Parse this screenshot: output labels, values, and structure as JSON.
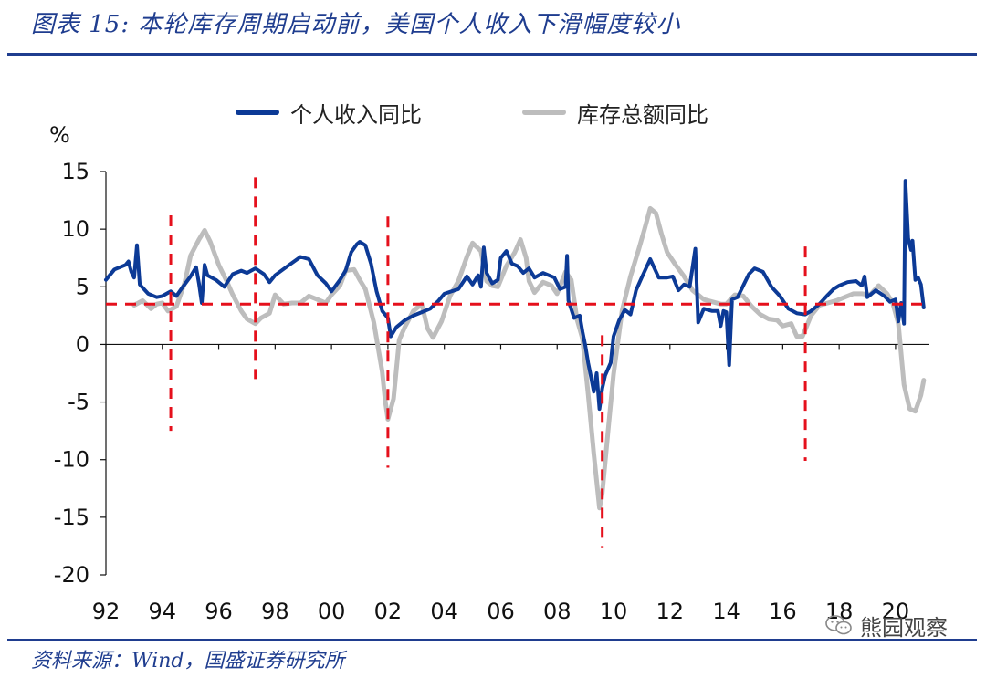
{
  "title": "图表 15:  本轮库存周期启动前，美国个人收入下滑幅度较小",
  "source": "资料来源：Wind，国盛证券研究所",
  "watermark": "熊园观察",
  "colors": {
    "accent": "#1f3d8f",
    "income": "#0c3a96",
    "inventory": "#bdbdbd",
    "marker": "#e5101c"
  },
  "chart_data": {
    "type": "line",
    "ylabel": "%",
    "ylim": [
      -20,
      15
    ],
    "yticks": [
      15,
      10,
      5,
      0,
      -5,
      -10,
      -15,
      -20
    ],
    "xlim": [
      1992,
      2021.2
    ],
    "xticks": [
      1992,
      1994,
      1996,
      1998,
      2000,
      2002,
      2004,
      2006,
      2008,
      2010,
      2012,
      2014,
      2016,
      2018,
      2020
    ],
    "xtick_labels": [
      "92",
      "94",
      "96",
      "98",
      "00",
      "02",
      "04",
      "06",
      "08",
      "10",
      "12",
      "14",
      "16",
      "18",
      "20"
    ],
    "legend": [
      "个人收入同比",
      "库存总额同比"
    ],
    "series": [
      {
        "name": "个人收入同比",
        "color": "#0c3a96",
        "points": [
          [
            1992.0,
            5.6
          ],
          [
            1992.3,
            6.5
          ],
          [
            1992.7,
            6.9
          ],
          [
            1992.8,
            7.2
          ],
          [
            1992.9,
            6.3
          ],
          [
            1993.0,
            5.8
          ],
          [
            1993.1,
            8.6
          ],
          [
            1993.2,
            5.2
          ],
          [
            1993.5,
            4.4
          ],
          [
            1993.8,
            4.1
          ],
          [
            1994.0,
            4.2
          ],
          [
            1994.3,
            4.6
          ],
          [
            1994.5,
            4.2
          ],
          [
            1994.7,
            4.9
          ],
          [
            1995.0,
            5.9
          ],
          [
            1995.2,
            6.7
          ],
          [
            1995.3,
            5.3
          ],
          [
            1995.4,
            3.6
          ],
          [
            1995.5,
            6.9
          ],
          [
            1995.6,
            6.0
          ],
          [
            1995.9,
            5.6
          ],
          [
            1996.2,
            5.0
          ],
          [
            1996.5,
            6.1
          ],
          [
            1996.8,
            6.4
          ],
          [
            1997.0,
            6.2
          ],
          [
            1997.3,
            6.6
          ],
          [
            1997.6,
            6.1
          ],
          [
            1997.8,
            5.4
          ],
          [
            1998.0,
            6.0
          ],
          [
            1998.5,
            6.9
          ],
          [
            1998.9,
            7.6
          ],
          [
            1999.2,
            7.4
          ],
          [
            1999.5,
            6.0
          ],
          [
            1999.8,
            5.3
          ],
          [
            2000.0,
            4.6
          ],
          [
            2000.3,
            5.6
          ],
          [
            2000.5,
            6.4
          ],
          [
            2000.7,
            8.0
          ],
          [
            2000.9,
            8.7
          ],
          [
            2001.0,
            8.9
          ],
          [
            2001.2,
            8.6
          ],
          [
            2001.4,
            7.0
          ],
          [
            2001.6,
            4.6
          ],
          [
            2001.8,
            2.9
          ],
          [
            2002.0,
            2.3
          ],
          [
            2002.1,
            0.7
          ],
          [
            2002.3,
            1.5
          ],
          [
            2002.6,
            2.1
          ],
          [
            2002.9,
            2.5
          ],
          [
            2003.2,
            2.8
          ],
          [
            2003.5,
            3.1
          ],
          [
            2003.8,
            3.8
          ],
          [
            2004.0,
            4.4
          ],
          [
            2004.5,
            4.8
          ],
          [
            2004.8,
            5.9
          ],
          [
            2005.0,
            5.2
          ],
          [
            2005.2,
            6.0
          ],
          [
            2005.3,
            5.0
          ],
          [
            2005.4,
            8.4
          ],
          [
            2005.5,
            6.2
          ],
          [
            2005.7,
            5.3
          ],
          [
            2005.9,
            5.6
          ],
          [
            2006.0,
            7.5
          ],
          [
            2006.2,
            8.1
          ],
          [
            2006.4,
            7.0
          ],
          [
            2006.6,
            6.8
          ],
          [
            2006.8,
            6.2
          ],
          [
            2007.0,
            6.6
          ],
          [
            2007.2,
            5.8
          ],
          [
            2007.5,
            6.2
          ],
          [
            2007.9,
            5.8
          ],
          [
            2008.1,
            4.8
          ],
          [
            2008.3,
            5.0
          ],
          [
            2008.35,
            7.7
          ],
          [
            2008.4,
            3.8
          ],
          [
            2008.6,
            2.3
          ],
          [
            2008.8,
            2.5
          ],
          [
            2008.9,
            1.1
          ],
          [
            2009.0,
            -0.1
          ],
          [
            2009.1,
            -1.6
          ],
          [
            2009.2,
            -2.8
          ],
          [
            2009.3,
            -4.1
          ],
          [
            2009.4,
            -2.5
          ],
          [
            2009.5,
            -5.6
          ],
          [
            2009.6,
            -3.8
          ],
          [
            2009.7,
            -2.7
          ],
          [
            2009.9,
            -1.6
          ],
          [
            2010.0,
            0.7
          ],
          [
            2010.2,
            2.1
          ],
          [
            2010.4,
            3.0
          ],
          [
            2010.6,
            2.6
          ],
          [
            2010.8,
            4.7
          ],
          [
            2011.0,
            5.8
          ],
          [
            2011.3,
            7.4
          ],
          [
            2011.6,
            5.8
          ],
          [
            2011.9,
            5.8
          ],
          [
            2012.1,
            5.9
          ],
          [
            2012.3,
            4.7
          ],
          [
            2012.5,
            5.2
          ],
          [
            2012.7,
            5.0
          ],
          [
            2012.9,
            8.3
          ],
          [
            2013.0,
            1.9
          ],
          [
            2013.2,
            3.1
          ],
          [
            2013.5,
            2.9
          ],
          [
            2013.7,
            2.9
          ],
          [
            2013.8,
            1.6
          ],
          [
            2013.9,
            2.9
          ],
          [
            2014.0,
            2.8
          ],
          [
            2014.1,
            -1.8
          ],
          [
            2014.2,
            3.9
          ],
          [
            2014.4,
            4.1
          ],
          [
            2014.6,
            5.1
          ],
          [
            2014.8,
            6.1
          ],
          [
            2015.0,
            6.6
          ],
          [
            2015.3,
            6.3
          ],
          [
            2015.6,
            5.0
          ],
          [
            2015.9,
            4.2
          ],
          [
            2016.2,
            3.1
          ],
          [
            2016.5,
            2.7
          ],
          [
            2016.8,
            2.6
          ],
          [
            2017.0,
            2.9
          ],
          [
            2017.3,
            3.5
          ],
          [
            2017.6,
            4.3
          ],
          [
            2017.8,
            4.8
          ],
          [
            2018.0,
            5.1
          ],
          [
            2018.3,
            5.4
          ],
          [
            2018.6,
            5.5
          ],
          [
            2018.8,
            5.1
          ],
          [
            2018.9,
            5.9
          ],
          [
            2019.0,
            4.1
          ],
          [
            2019.3,
            4.7
          ],
          [
            2019.6,
            4.2
          ],
          [
            2019.8,
            3.7
          ],
          [
            2020.0,
            3.9
          ],
          [
            2020.1,
            2.0
          ],
          [
            2020.2,
            3.6
          ],
          [
            2020.3,
            1.8
          ],
          [
            2020.35,
            14.2
          ],
          [
            2020.45,
            9.2
          ],
          [
            2020.55,
            8.2
          ],
          [
            2020.6,
            9.0
          ],
          [
            2020.7,
            5.6
          ],
          [
            2020.8,
            5.8
          ],
          [
            2020.9,
            5.2
          ],
          [
            2021.0,
            3.2
          ]
        ]
      },
      {
        "name": "库存总额同比",
        "color": "#bdbdbd",
        "points": [
          [
            1993.0,
            3.4
          ],
          [
            1993.3,
            3.8
          ],
          [
            1993.6,
            3.1
          ],
          [
            1993.8,
            3.5
          ],
          [
            1994.0,
            3.6
          ],
          [
            1994.2,
            2.9
          ],
          [
            1994.5,
            3.3
          ],
          [
            1994.8,
            5.4
          ],
          [
            1995.0,
            7.7
          ],
          [
            1995.3,
            9.1
          ],
          [
            1995.5,
            9.9
          ],
          [
            1995.7,
            8.9
          ],
          [
            1996.0,
            6.9
          ],
          [
            1996.3,
            5.4
          ],
          [
            1996.5,
            4.3
          ],
          [
            1996.8,
            2.9
          ],
          [
            1997.0,
            2.2
          ],
          [
            1997.3,
            1.8
          ],
          [
            1997.5,
            2.3
          ],
          [
            1997.8,
            2.7
          ],
          [
            1998.0,
            4.3
          ],
          [
            1998.3,
            3.5
          ],
          [
            1998.6,
            3.6
          ],
          [
            1998.9,
            3.6
          ],
          [
            1999.2,
            4.2
          ],
          [
            1999.5,
            3.9
          ],
          [
            1999.8,
            3.6
          ],
          [
            2000.0,
            4.3
          ],
          [
            2000.3,
            5.1
          ],
          [
            2000.5,
            6.4
          ],
          [
            2000.8,
            6.5
          ],
          [
            2001.0,
            5.6
          ],
          [
            2001.2,
            4.8
          ],
          [
            2001.5,
            1.9
          ],
          [
            2001.8,
            -2.4
          ],
          [
            2001.9,
            -4.8
          ],
          [
            2002.0,
            -6.5
          ],
          [
            2002.2,
            -4.7
          ],
          [
            2002.4,
            0.4
          ],
          [
            2002.6,
            1.5
          ],
          [
            2002.9,
            2.9
          ],
          [
            2003.2,
            3.5
          ],
          [
            2003.4,
            1.4
          ],
          [
            2003.6,
            0.6
          ],
          [
            2003.9,
            2.0
          ],
          [
            2004.2,
            4.2
          ],
          [
            2004.5,
            5.5
          ],
          [
            2004.8,
            7.6
          ],
          [
            2005.0,
            8.8
          ],
          [
            2005.3,
            8.1
          ],
          [
            2005.5,
            5.5
          ],
          [
            2005.7,
            5.1
          ],
          [
            2005.9,
            5.0
          ],
          [
            2006.2,
            6.8
          ],
          [
            2006.5,
            8.0
          ],
          [
            2006.7,
            9.1
          ],
          [
            2006.9,
            7.5
          ],
          [
            2007.0,
            5.5
          ],
          [
            2007.2,
            4.5
          ],
          [
            2007.5,
            5.4
          ],
          [
            2007.8,
            5.1
          ],
          [
            2008.0,
            4.4
          ],
          [
            2008.3,
            6.3
          ],
          [
            2008.5,
            5.6
          ],
          [
            2008.7,
            2.2
          ],
          [
            2008.9,
            0.5
          ],
          [
            2009.1,
            -4.3
          ],
          [
            2009.3,
            -9.5
          ],
          [
            2009.5,
            -14.2
          ],
          [
            2009.6,
            -12.9
          ],
          [
            2009.8,
            -7.7
          ],
          [
            2010.0,
            -2.6
          ],
          [
            2010.3,
            2.9
          ],
          [
            2010.6,
            5.9
          ],
          [
            2010.9,
            8.3
          ],
          [
            2011.1,
            10.0
          ],
          [
            2011.3,
            11.8
          ],
          [
            2011.5,
            11.4
          ],
          [
            2011.7,
            9.6
          ],
          [
            2011.9,
            8.0
          ],
          [
            2012.2,
            6.9
          ],
          [
            2012.5,
            5.9
          ],
          [
            2012.8,
            4.7
          ],
          [
            2013.0,
            4.3
          ],
          [
            2013.2,
            3.9
          ],
          [
            2013.5,
            3.7
          ],
          [
            2013.8,
            3.5
          ],
          [
            2014.0,
            3.5
          ],
          [
            2014.3,
            4.3
          ],
          [
            2014.6,
            4.2
          ],
          [
            2014.9,
            3.3
          ],
          [
            2015.2,
            2.6
          ],
          [
            2015.5,
            2.2
          ],
          [
            2015.8,
            2.1
          ],
          [
            2016.0,
            1.6
          ],
          [
            2016.3,
            1.8
          ],
          [
            2016.5,
            0.7
          ],
          [
            2016.7,
            0.7
          ],
          [
            2017.0,
            2.5
          ],
          [
            2017.3,
            3.4
          ],
          [
            2017.6,
            3.6
          ],
          [
            2017.9,
            3.8
          ],
          [
            2018.2,
            4.1
          ],
          [
            2018.5,
            4.4
          ],
          [
            2018.8,
            4.4
          ],
          [
            2019.1,
            4.3
          ],
          [
            2019.4,
            5.1
          ],
          [
            2019.7,
            4.4
          ],
          [
            2019.9,
            3.6
          ],
          [
            2020.1,
            1.8
          ],
          [
            2020.3,
            -3.5
          ],
          [
            2020.5,
            -5.6
          ],
          [
            2020.7,
            -5.8
          ],
          [
            2020.9,
            -4.4
          ],
          [
            2021.0,
            -3.1
          ]
        ]
      }
    ],
    "annotations": {
      "horizontal_line": 3.5,
      "vertical_markers": [
        {
          "x": 1994.3,
          "y_range": [
            -7.5,
            11.2
          ]
        },
        {
          "x": 1997.3,
          "y_range": [
            -3.0,
            14.5
          ]
        },
        {
          "x": 2002.0,
          "y_range": [
            -10.7,
            11.1
          ]
        },
        {
          "x": 2009.6,
          "y_range": [
            -17.6,
            0.8
          ]
        },
        {
          "x": 2016.8,
          "y_range": [
            -10.1,
            8.5
          ]
        }
      ]
    }
  }
}
